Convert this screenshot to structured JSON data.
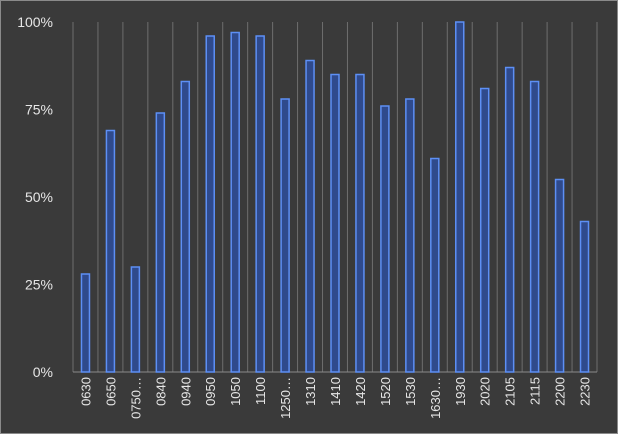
{
  "chart_data": {
    "type": "bar",
    "categories": [
      "0630",
      "0650",
      "0750…",
      "0840",
      "0940",
      "0950",
      "1050",
      "1100",
      "1250…",
      "1310",
      "1410",
      "1420",
      "1520",
      "1530",
      "1630…",
      "1930",
      "2020",
      "2105",
      "2115",
      "2200",
      "2230"
    ],
    "values": [
      28,
      69,
      30,
      74,
      83,
      96,
      97,
      96,
      78,
      89,
      85,
      85,
      76,
      78,
      61,
      100,
      81,
      87,
      83,
      55,
      43
    ],
    "ylim": [
      0,
      100
    ],
    "yticks": [
      "0%",
      "25%",
      "50%",
      "75%",
      "100%"
    ],
    "ytick_values": [
      0,
      25,
      50,
      75,
      100
    ],
    "grid": "vertical",
    "legend": "none",
    "colors": {
      "bar_fill": "#2f4a8c",
      "bar_edge": "#5d8ff5",
      "background": "#3a3a3a",
      "text": "#e6e6e6"
    }
  }
}
